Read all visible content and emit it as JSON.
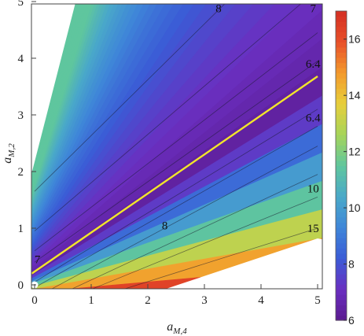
{
  "chart_data": {
    "type": "heatmap",
    "title": "",
    "xlabel": {
      "main": "a",
      "sub": "M,4"
    },
    "ylabel": {
      "main": "a",
      "sub": "M,2"
    },
    "xlim": [
      0,
      5
    ],
    "ylim": [
      0,
      5
    ],
    "xticks": [
      "0",
      "1",
      "2",
      "3",
      "4",
      "5"
    ],
    "yticks": [
      "0",
      "1",
      "2",
      "3",
      "4",
      "5"
    ],
    "colorbar": {
      "range": [
        6,
        17
      ],
      "ticks": [
        "6",
        "8",
        "10",
        "12",
        "14",
        "16"
      ],
      "colormap": [
        "#5b1a8f",
        "#6a2fc0",
        "#3b5bd6",
        "#3f86d8",
        "#4aa9c9",
        "#5fc69e",
        "#a6d45a",
        "#e7cf3b",
        "#f39a2c",
        "#e8502a",
        "#d42f23"
      ]
    },
    "valley_line": {
      "color": "#f2e52b",
      "points": [
        [
          -0.05,
          0.2
        ],
        [
          5,
          3.68
        ]
      ]
    },
    "marker": {
      "x": 0.0,
      "y": 0.0,
      "color": "#ffffff"
    },
    "contour_labels": [
      {
        "text": "8",
        "x": 3.25,
        "y": 4.88
      },
      {
        "text": "7",
        "x": 4.92,
        "y": 4.88
      },
      {
        "text": "6.4",
        "x": 4.92,
        "y": 3.9
      },
      {
        "text": "6.4",
        "x": 4.92,
        "y": 2.95
      },
      {
        "text": "10",
        "x": 4.92,
        "y": 1.7
      },
      {
        "text": "8",
        "x": 2.3,
        "y": 1.05
      },
      {
        "text": "15",
        "x": 4.92,
        "y": 1.0
      },
      {
        "text": "7",
        "x": 0.05,
        "y": 0.45
      }
    ],
    "contour_lines": [
      {
        "level": 8,
        "from": [
          0.0,
          1.65
        ],
        "to": [
          3.4,
          5.0
        ]
      },
      {
        "level": 7,
        "from": [
          0.0,
          0.95
        ],
        "to": [
          4.75,
          5.0
        ]
      },
      {
        "level": 6.6,
        "from": [
          0.0,
          0.6
        ],
        "to": [
          5.0,
          4.45
        ]
      },
      {
        "level": 6.4,
        "from": [
          0.0,
          0.4
        ],
        "to": [
          5.0,
          3.95
        ]
      },
      {
        "level": 6.4,
        "from": [
          0.0,
          0.05
        ],
        "to": [
          5.0,
          3.1
        ]
      },
      {
        "level": 6.6,
        "from": [
          0.0,
          -0.05
        ],
        "to": [
          5.0,
          2.8
        ]
      },
      {
        "level": 7,
        "from": [
          0.25,
          -0.1
        ],
        "to": [
          5.0,
          2.45
        ]
      },
      {
        "level": 8,
        "from": [
          0.6,
          -0.1
        ],
        "to": [
          5.0,
          1.95
        ]
      },
      {
        "level": 10,
        "from": [
          0.95,
          -0.1
        ],
        "to": [
          5.0,
          1.55
        ]
      },
      {
        "level": 15,
        "from": [
          1.5,
          -0.1
        ],
        "to": [
          5.0,
          1.0
        ]
      }
    ]
  }
}
